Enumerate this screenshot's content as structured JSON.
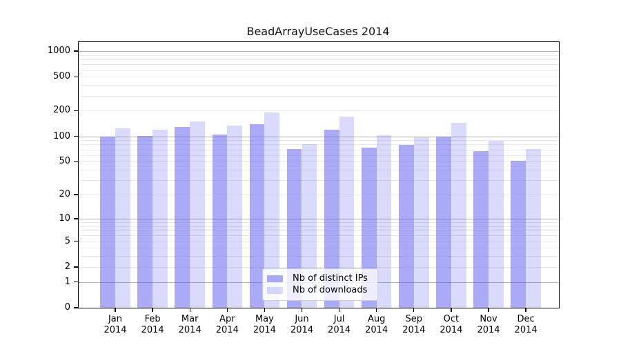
{
  "chart_data": {
    "type": "bar",
    "title": "BeadArrayUseCases 2014",
    "categories": [
      "Jan 2014",
      "Feb 2014",
      "Mar 2014",
      "Apr 2014",
      "May 2014",
      "Jun 2014",
      "Jul 2014",
      "Aug 2014",
      "Sep 2014",
      "Oct 2014",
      "Nov 2014",
      "Dec 2014"
    ],
    "x_tick_line1": [
      "Jan",
      "Feb",
      "Mar",
      "Apr",
      "May",
      "Jun",
      "Jul",
      "Aug",
      "Sep",
      "Oct",
      "Nov",
      "Dec"
    ],
    "x_tick_line2": "2014",
    "series": [
      {
        "name": "Nb of distinct IPs",
        "color": "#5555f0",
        "opacity": 0.5,
        "values": [
          99,
          101,
          128,
          104,
          139,
          71,
          120,
          73,
          79,
          100,
          67,
          51
        ]
      },
      {
        "name": "Nb of downloads",
        "color": "#5555f0",
        "opacity": 0.22,
        "values": [
          125,
          119,
          149,
          135,
          191,
          80,
          170,
          103,
          97,
          143,
          88,
          71
        ]
      }
    ],
    "yscale": "log10(1+y)",
    "yticks": [
      1000,
      500,
      200,
      100,
      50,
      20,
      10,
      5,
      2,
      1,
      0
    ],
    "ylim": [
      0,
      1270
    ],
    "grid": "horizontal",
    "major_grid_values": [
      1,
      10,
      100,
      1000
    ],
    "major_grid_color": "#b0b0b0",
    "minor_grid_color": "#ebebeb",
    "axis_color": "#000000",
    "background": "#ffffff",
    "legend_position": "lower center inside"
  }
}
